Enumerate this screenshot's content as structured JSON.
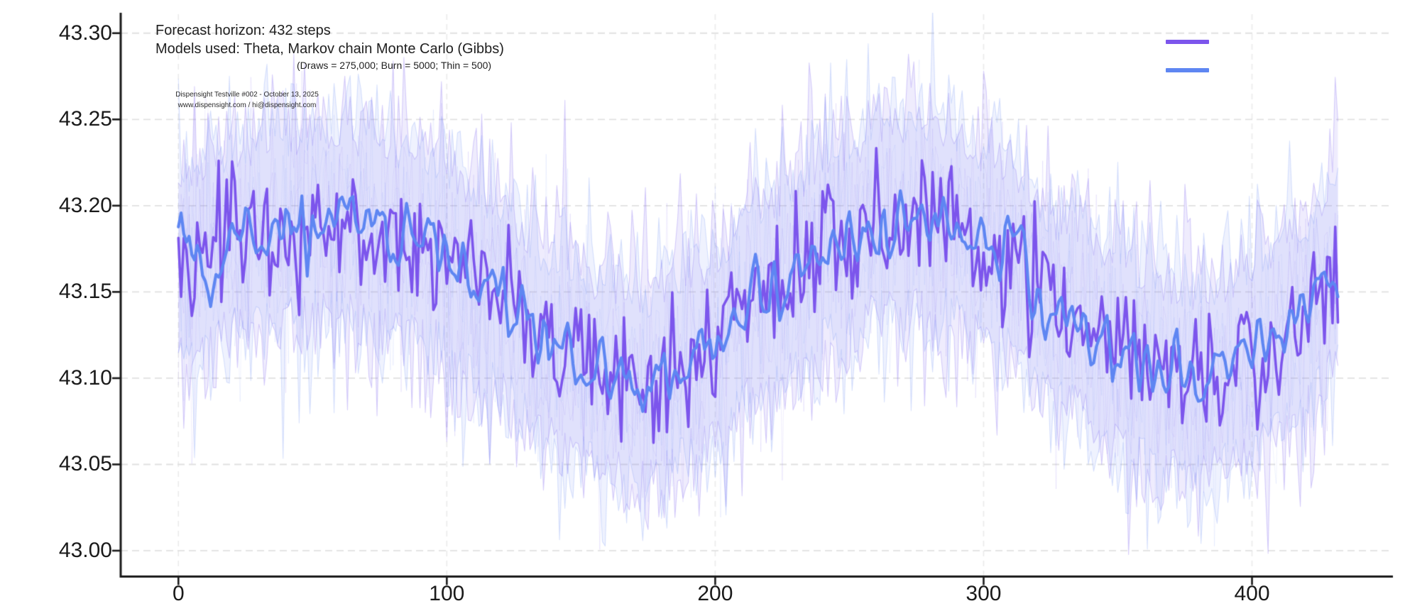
{
  "figure": {
    "header": {
      "line1": "Forecast horizon: 432 steps",
      "line2": "Models used: Theta, Markov chain Monte Carlo (Gibbs)",
      "line3": "(Draws = 275,000; Burn = 5000; Thin = 500)"
    },
    "watermark": {
      "line1": "Dispensight Testville #002 - October 13, 2025",
      "line2": "www.dispensight.com / hi@dispensight.com"
    },
    "legend": {
      "labels_visible": false,
      "items": [
        {
          "label": "Theta",
          "color": "#7C55EC"
        },
        {
          "label": "Markov chain Monte Carlo (Gibbs)",
          "color": "#5E86F2"
        }
      ]
    }
  },
  "chart_data": {
    "type": "line",
    "title": "Forecast horizon: 432 steps",
    "xlabel": "",
    "ylabel": "",
    "n_steps": 432,
    "xlim": [
      -21.5,
      452.5
    ],
    "ylim": [
      42.985,
      43.311
    ],
    "xticks": [
      0,
      100,
      200,
      300,
      400
    ],
    "yticks": [
      43.0,
      43.05,
      43.1,
      43.15,
      43.2,
      43.25,
      43.3
    ],
    "grid": true,
    "legend_position": "upper right",
    "trend_keypoints": {
      "x": [
        0,
        25,
        55,
        90,
        115,
        140,
        160,
        175,
        195,
        220,
        245,
        265,
        285,
        305,
        330,
        355,
        375,
        395,
        415,
        432
      ],
      "y": [
        43.165,
        43.183,
        43.192,
        43.178,
        43.152,
        43.118,
        43.1,
        43.095,
        43.113,
        43.15,
        43.178,
        43.192,
        43.193,
        43.175,
        43.138,
        43.11,
        43.098,
        43.105,
        43.128,
        43.16
      ]
    },
    "series": [
      {
        "name": "Theta",
        "color": "#7C55EC",
        "band_fill": "rgba(134,108,240,0.13)",
        "band_edge": "rgba(134,108,240,0.32)",
        "wisp_color": "rgba(134,108,240,0.12)",
        "seed": 1137,
        "noise_sd": 0.019,
        "smooth": 0,
        "line_width": 3.6,
        "band_base": 0.04,
        "band_spike_sd": 0.028,
        "wisps": 3,
        "wisp_sd": 0.034
      },
      {
        "name": "Markov chain Monte Carlo (Gibbs)",
        "color": "#5E86F2",
        "band_fill": "rgba(120,150,246,0.12)",
        "band_edge": "rgba(120,150,246,0.28)",
        "wisp_color": "rgba(120,150,246,0.11)",
        "seed": 2029,
        "noise_sd": 0.017,
        "smooth": 1,
        "line_width": 4.2,
        "band_base": 0.04,
        "band_spike_sd": 0.028,
        "wisps": 3,
        "wisp_sd": 0.034
      }
    ],
    "axis": {
      "spine_color": "#1a1a1a",
      "grid_color_h": "#e0e0e0",
      "grid_color_v": "#eaeaea",
      "tick_color": "#1a1a1a"
    }
  }
}
